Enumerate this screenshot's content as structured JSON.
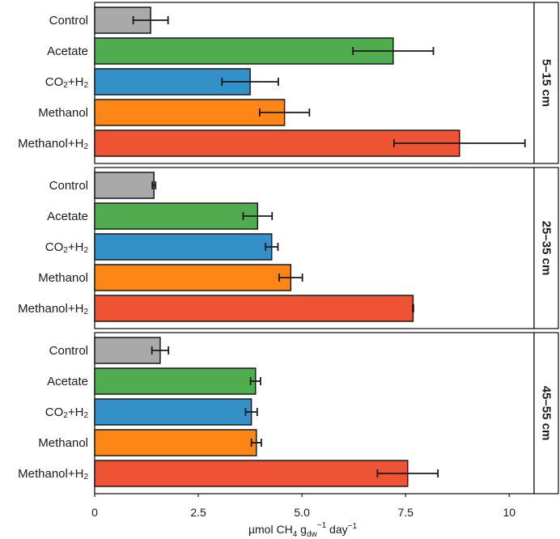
{
  "chart_data": {
    "type": "bar",
    "orientation": "horizontal",
    "xlabel": {
      "prefix": "µmol CH",
      "sub1": "4",
      "mid": " g",
      "sub2": "dw",
      "sup2": "−1",
      "suffix": " day",
      "sup3": "−1"
    },
    "xlim": [
      0,
      10.6
    ],
    "xticks": [
      {
        "value": 0,
        "label": "0"
      },
      {
        "value": 2.5,
        "label": "2.5"
      },
      {
        "value": 5,
        "label": "5.0"
      },
      {
        "value": 7.5,
        "label": "7.5"
      },
      {
        "value": 10,
        "label": "10"
      }
    ],
    "categories": [
      {
        "base": "Control",
        "sub": "",
        "tail": ""
      },
      {
        "base": "Acetate",
        "sub": "",
        "tail": ""
      },
      {
        "base": "CO",
        "sub": "2",
        "tail": "+H"
      },
      {
        "base": "Methanol",
        "sub": "",
        "tail": ""
      },
      {
        "base": "Methanol+H",
        "sub": "",
        "tail": ""
      }
    ],
    "category_sub_last": "2",
    "colors": [
      "#a9a9a9",
      "#4fad50",
      "#3391c8",
      "#fd8616",
      "#ee5433"
    ],
    "panels": [
      {
        "label": "5–15 cm",
        "values": [
          1.35,
          7.2,
          3.75,
          4.58,
          8.8
        ],
        "errors": [
          0.42,
          0.97,
          0.68,
          0.6,
          1.58
        ]
      },
      {
        "label": "25–35 cm",
        "values": [
          1.43,
          3.93,
          4.27,
          4.73,
          7.68
        ],
        "errors": [
          0.04,
          0.35,
          0.15,
          0.28,
          0.01
        ]
      },
      {
        "label": "45–55 cm",
        "values": [
          1.58,
          3.88,
          3.78,
          3.9,
          7.55
        ],
        "errors": [
          0.2,
          0.12,
          0.14,
          0.12,
          0.73
        ]
      }
    ]
  }
}
